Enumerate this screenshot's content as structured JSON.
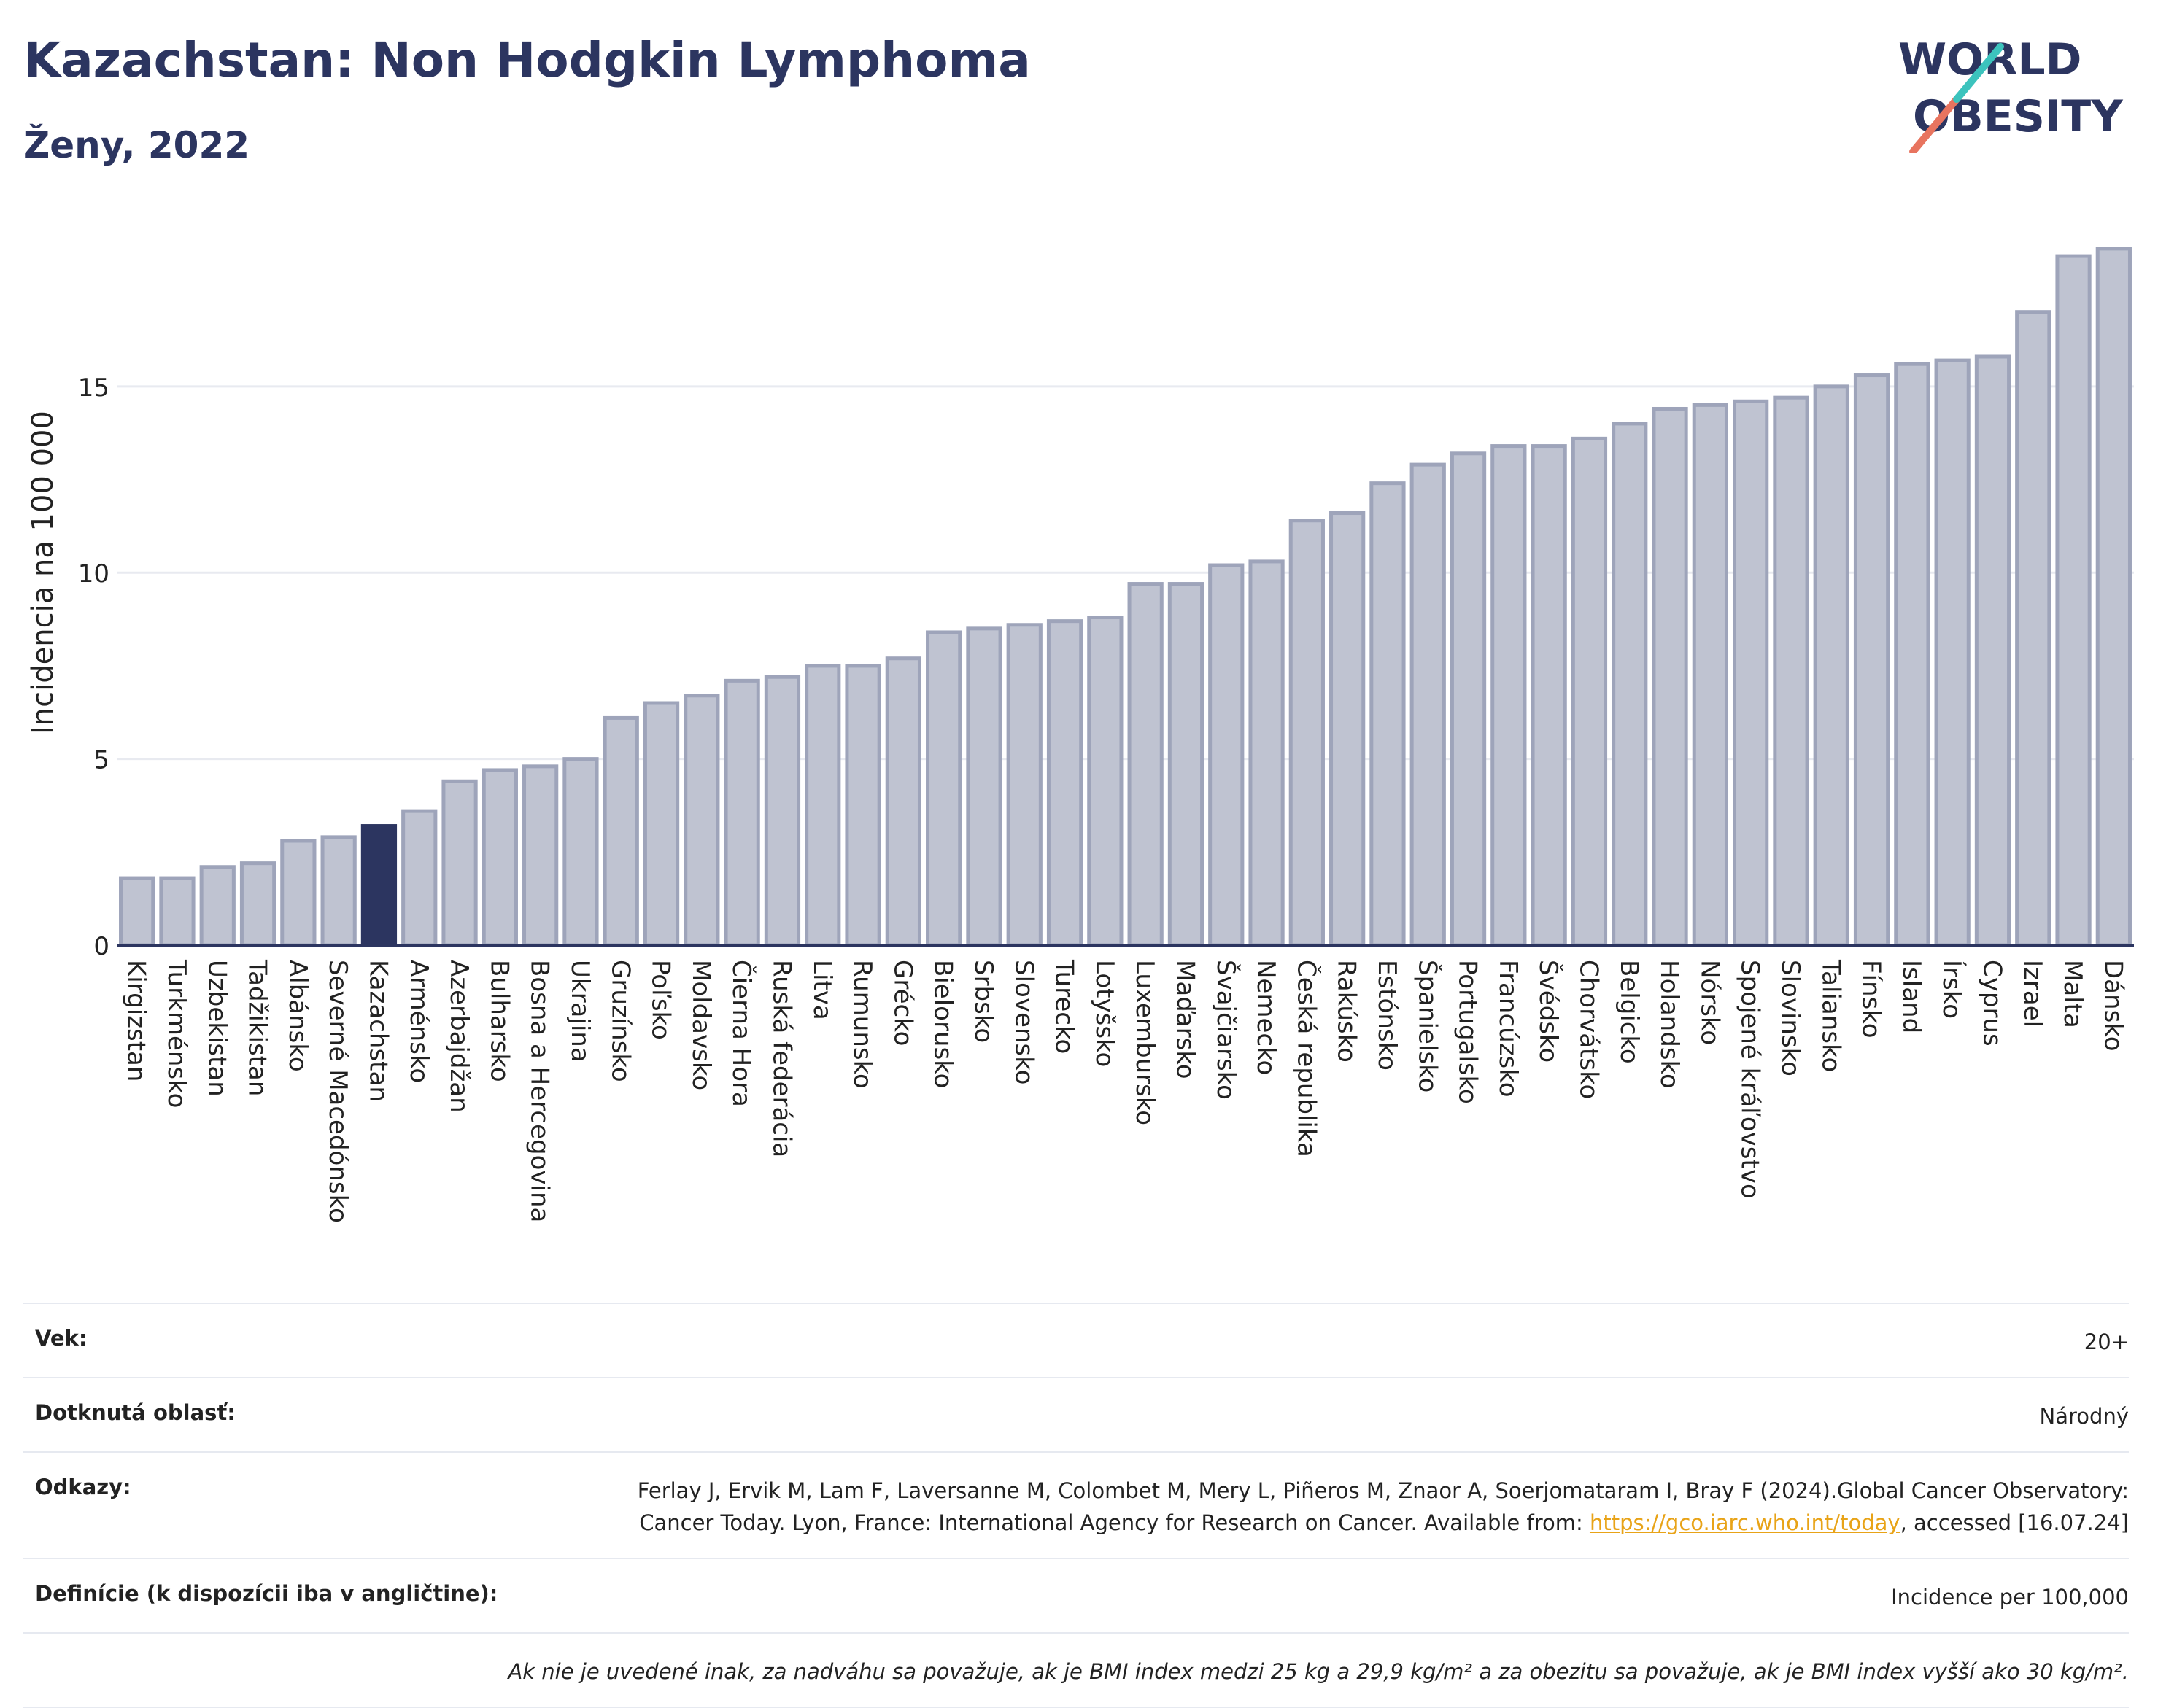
{
  "header": {
    "title": "Kazachstan: Non Hodgkin Lymphoma",
    "subtitle": "Ženy, 2022"
  },
  "logo": {
    "line1": "WORLD",
    "line2": "OBESITY"
  },
  "colors": {
    "bar": "#bfc3d1",
    "bar_stroke": "#9ea4ba",
    "highlight": "#2c3560",
    "grid": "#e8eaf0",
    "axis": "#2c3560",
    "logo_teal": "#3cc3bd",
    "logo_coral": "#e8745f"
  },
  "chart_data": {
    "type": "bar",
    "title": "Kazachstan: Non Hodgkin Lymphoma",
    "subtitle": "Ženy, 2022",
    "ylabel": "Incidencia na 100 000",
    "xlabel": "",
    "ylim": [
      0,
      19.5
    ],
    "yticks": [
      0,
      5,
      10,
      15
    ],
    "grid": true,
    "highlight": "Kazachstan",
    "categories": [
      "Kirgizstan",
      "Turkménsko",
      "Uzbekistan",
      "Tadžikistan",
      "Albánsko",
      "Severné Macedónsko",
      "Kazachstan",
      "Arménsko",
      "Azerbajdžan",
      "Bulharsko",
      "Bosna a Hercegovina",
      "Ukrajina",
      "Gruzínsko",
      "Poľsko",
      "Moldavsko",
      "Čierna Hora",
      "Ruská federácia",
      "Litva",
      "Rumunsko",
      "Grécko",
      "Bielorusko",
      "Srbsko",
      "Slovensko",
      "Turecko",
      "Lotyšsko",
      "Luxembursko",
      "Maďarsko",
      "Švajčiarsko",
      "Nemecko",
      "Česká republika",
      "Rakúsko",
      "Estónsko",
      "Španielsko",
      "Portugalsko",
      "Francúzsko",
      "Švédsko",
      "Chorvátsko",
      "Belgicko",
      "Holandsko",
      "Nórsko",
      "Spojené kráľovstvo",
      "Slovinsko",
      "Taliansko",
      "Fínsko",
      "Island",
      "Írsko",
      "Cyprus",
      "Izrael",
      "Malta",
      "Dánsko"
    ],
    "values": [
      1.8,
      1.8,
      2.1,
      2.2,
      2.8,
      2.9,
      3.2,
      3.6,
      4.4,
      4.7,
      4.8,
      5.0,
      6.1,
      6.5,
      6.7,
      7.1,
      7.2,
      7.5,
      7.5,
      7.7,
      8.4,
      8.5,
      8.6,
      8.7,
      8.8,
      9.7,
      9.7,
      10.2,
      10.3,
      11.4,
      11.6,
      12.4,
      12.9,
      13.2,
      13.4,
      13.4,
      13.6,
      14.0,
      14.4,
      14.5,
      14.6,
      14.7,
      15.0,
      15.3,
      15.6,
      15.7,
      15.8,
      17.0,
      18.5,
      18.7
    ]
  },
  "info": {
    "age_label": "Vek:",
    "age_value": "20+",
    "area_label": "Dotknutá oblasť:",
    "area_value": "Národný",
    "refs_label": "Odkazy:",
    "refs_text_1": "Ferlay J, Ervik M, Lam F, Laversanne M, Colombet M, Mery L, Piñeros M, Znaor A, Soerjomataram I, Bray F (2024).Global Cancer Observatory: Cancer Today. Lyon, France: International Agency for Research on Cancer. Available from: ",
    "refs_link": "https://gco.iarc.who.int/today",
    "refs_text_2": ", accessed [16.07.24]",
    "def_label": "Definície (k dispozícii iba v angličtine):",
    "def_value": "Incidence per 100,000",
    "note": "Ak nie je uvedené inak, za nadváhu sa považuje, ak je BMI index medzi 25 kg a 29,9 kg/m² a za obezitu sa považuje, ak je BMI index vyšší ako 30 kg/m²."
  }
}
